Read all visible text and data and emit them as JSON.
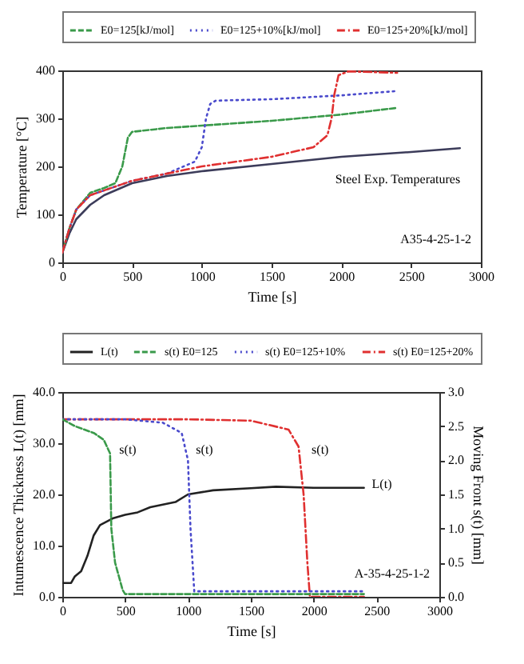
{
  "chart_data": [
    {
      "type": "line",
      "xlabel": "Time [s]",
      "ylabel": "Temperature [°C]",
      "xlim": [
        0,
        3000
      ],
      "xticks": [
        0,
        500,
        1000,
        1500,
        2000,
        2500,
        3000
      ],
      "ylim": [
        0,
        400
      ],
      "yticks": [
        0,
        100,
        200,
        300,
        400
      ],
      "legend": "top",
      "grid": false,
      "annotations": [
        {
          "text": "Steel Exp. Temperatures",
          "x": 1900,
          "y": 218
        },
        "A35-4-25-1-2"
      ],
      "series": [
        {
          "color": "#3c3c5a",
          "line_style": "solid",
          "x": [
            0,
            50,
            100,
            200,
            300,
            500,
            750,
            1000,
            1500,
            2000,
            2500,
            2850
          ],
          "values": [
            20,
            60,
            90,
            120,
            140,
            165,
            180,
            190,
            205,
            220,
            230,
            238
          ]
        },
        {
          "name": "E0=125[kJ/mol]",
          "color": "#3a9a4a",
          "line_style": "dashed",
          "x": [
            0,
            50,
            100,
            200,
            300,
            380,
            430,
            470,
            500,
            750,
            1000,
            1500,
            2000,
            2400
          ],
          "values": [
            20,
            70,
            110,
            145,
            155,
            165,
            200,
            260,
            272,
            280,
            285,
            295,
            308,
            322
          ]
        },
        {
          "name": "E0=125+10%[kJ/mol]",
          "color": "#4a4acc",
          "line_style": "dotted",
          "x": [
            0,
            50,
            100,
            200,
            500,
            750,
            950,
            1000,
            1030,
            1060,
            1100,
            1500,
            2000,
            2400
          ],
          "values": [
            20,
            70,
            110,
            140,
            170,
            185,
            210,
            240,
            300,
            330,
            337,
            340,
            348,
            357
          ]
        },
        {
          "name": "E0=125+20%[kJ/mol]",
          "color": "#e03030",
          "line_style": "dashdot",
          "x": [
            0,
            50,
            100,
            200,
            500,
            1000,
            1500,
            1800,
            1900,
            1930,
            1950,
            1980,
            2050,
            2400
          ],
          "values": [
            20,
            70,
            110,
            140,
            170,
            200,
            220,
            240,
            265,
            300,
            350,
            390,
            398,
            395
          ]
        }
      ]
    },
    {
      "type": "line",
      "xlabel": "Time [s]",
      "ylabel": "Intumescence Thickness L(t) [mm]",
      "y2label": "Moving Front s(t) [mm]",
      "xlim": [
        0,
        3000
      ],
      "xticks": [
        0,
        500,
        1000,
        1500,
        2000,
        2500,
        3000
      ],
      "ylim": [
        0,
        40
      ],
      "yticks": [
        {
          "value": 0,
          "label": "0.0"
        },
        {
          "value": 10,
          "label": "10.0"
        },
        {
          "value": 20,
          "label": "20.0"
        },
        {
          "value": 30,
          "label": "30.0"
        },
        {
          "value": 40,
          "label": "40.0"
        }
      ],
      "y2lim": [
        0,
        3
      ],
      "y2ticks": [
        {
          "value": 0,
          "label": "0.0"
        },
        {
          "value": 0.5,
          "label": "0.5"
        },
        {
          "value": 1,
          "label": "1.0"
        },
        {
          "value": 1.5,
          "label": "1.5"
        },
        {
          "value": 2,
          "label": "2.0"
        },
        {
          "value": 2.5,
          "label": "2.5"
        },
        {
          "value": 3,
          "label": "3.0"
        }
      ],
      "legend": "top",
      "grid": false,
      "annotations": [
        {
          "text": "s(t)",
          "x": 390,
          "y": 28
        },
        {
          "text": "s(t)",
          "x": 1000,
          "y": 28
        },
        {
          "text": "s(t)",
          "x": 1920,
          "y": 28
        },
        {
          "text": "L(t)",
          "x": 2400,
          "y": 21.3
        },
        "A-35-4-25-1-2"
      ],
      "series": [
        {
          "name": "L(t)",
          "color": "#222222",
          "line_style": "solid",
          "x": [
            0,
            70,
            100,
            150,
            200,
            250,
            300,
            400,
            500,
            600,
            700,
            800,
            900,
            1000,
            1200,
            1500,
            1700,
            2000,
            2400
          ],
          "values": [
            2.7,
            2.7,
            4,
            5,
            8,
            12,
            14,
            15.3,
            16,
            16.5,
            17.5,
            18,
            18.5,
            20,
            20.8,
            21.2,
            21.5,
            21.3,
            21.3
          ]
        },
        {
          "name": "s(t) E0=125",
          "color": "#3a9a4a",
          "line_style": "dashed",
          "axis": "y2",
          "x": [
            0,
            100,
            250,
            330,
            380,
            390,
            420,
            480,
            500,
            2400
          ],
          "values": [
            2.6,
            2.5,
            2.4,
            2.3,
            2.1,
            1.0,
            0.5,
            0.1,
            0.04,
            0.04
          ]
        },
        {
          "name": "s(t) E0=125+10%",
          "color": "#4a4acc",
          "line_style": "dotted",
          "axis": "y2",
          "x": [
            0,
            500,
            800,
            950,
            1000,
            1020,
            1050,
            2400
          ],
          "values": [
            2.6,
            2.6,
            2.55,
            2.4,
            2.0,
            1.0,
            0.08,
            0.08
          ]
        },
        {
          "name": "s(t) E0=125+20%",
          "color": "#e03030",
          "line_style": "dashdot",
          "axis": "y2",
          "x": [
            0,
            1000,
            1500,
            1800,
            1880,
            1920,
            1950,
            1970,
            2400
          ],
          "values": [
            2.6,
            2.6,
            2.58,
            2.45,
            2.2,
            1.5,
            0.5,
            0,
            0
          ]
        }
      ]
    }
  ]
}
